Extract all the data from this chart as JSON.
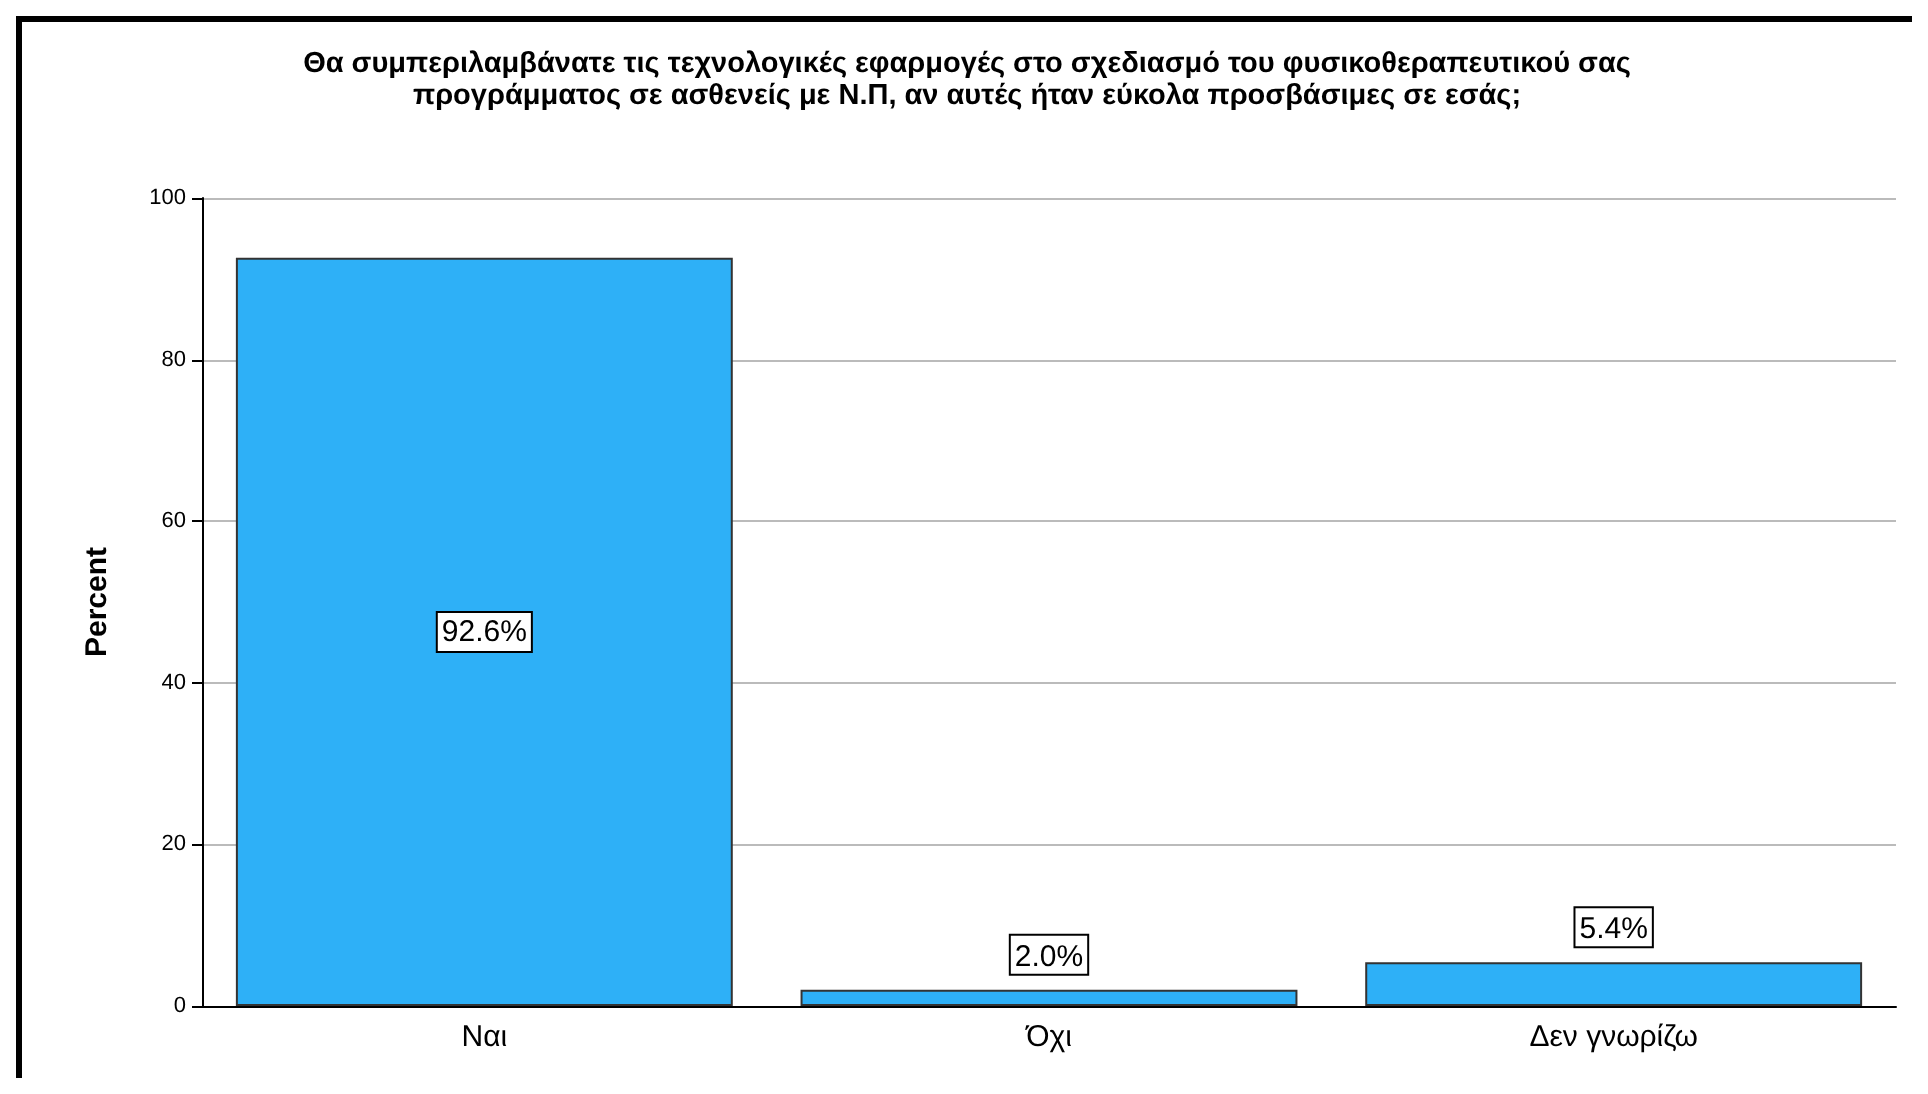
{
  "chart_data": {
    "type": "bar",
    "title": "Θα συμπεριλαμβάνατε τις τεχνολογικές εφαρμογές στο σχεδιασμό του φυσικοθεραπευτικού σας\nπρογράμματος σε ασθενείς με Ν.Π, αν αυτές ήταν εύκολα προσβάσιμες σε εσάς;",
    "ylabel": "Percent",
    "categories": [
      "Ναι",
      "Όχι",
      "Δεν γνωρίζω"
    ],
    "values": [
      92.6,
      2.0,
      5.4
    ],
    "value_labels": [
      "92.6%",
      "2.0%",
      "5.4%"
    ],
    "color": "#2eb0f7",
    "ylim": [
      0,
      100
    ],
    "yticks": [
      0,
      20,
      40,
      60,
      80,
      100
    ],
    "grid": "y"
  }
}
